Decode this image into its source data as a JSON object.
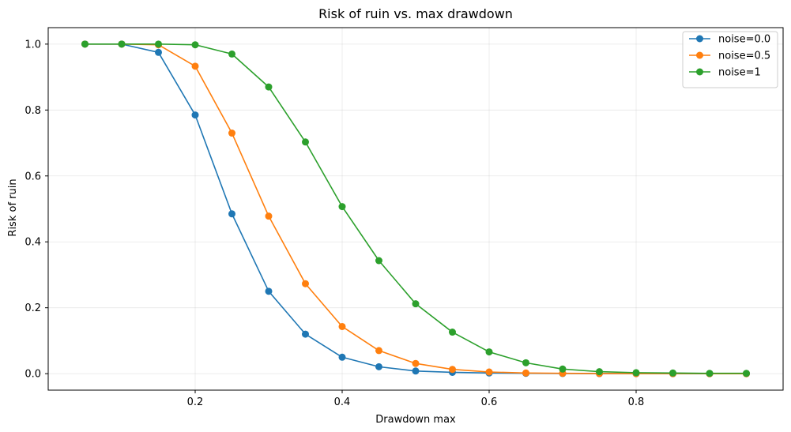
{
  "chart_data": {
    "type": "line",
    "title": "Risk of ruin vs. max drawdown",
    "xlabel": "Drawdown max",
    "ylabel": "Risk of ruin",
    "xlim": [
      0.0,
      1.0
    ],
    "ylim": [
      -0.05,
      1.05
    ],
    "grid": true,
    "legend_position": "top-right",
    "x": [
      0.05,
      0.1,
      0.15,
      0.2,
      0.25,
      0.3,
      0.35,
      0.4,
      0.45,
      0.5,
      0.55,
      0.6,
      0.65,
      0.7,
      0.75,
      0.8,
      0.85,
      0.9,
      0.95
    ],
    "xticks": [
      0.2,
      0.4,
      0.6,
      0.8
    ],
    "xtick_labels": [
      "0.2",
      "0.4",
      "0.6",
      "0.8"
    ],
    "yticks": [
      0.0,
      0.2,
      0.4,
      0.6,
      0.8,
      1.0
    ],
    "ytick_labels": [
      "0.0",
      "0.2",
      "0.4",
      "0.6",
      "0.8",
      "1.0"
    ],
    "series": [
      {
        "name": "noise=0.0",
        "color": "#1f77b4",
        "values": [
          1.0,
          1.0,
          0.975,
          0.785,
          0.485,
          0.25,
          0.12,
          0.05,
          0.021,
          0.008,
          0.004,
          0.002,
          0.001,
          0.0005,
          0.0002,
          0.0001,
          0.0,
          0.0,
          0.0
        ]
      },
      {
        "name": "noise=0.5",
        "color": "#ff7f0e",
        "values": [
          1.0,
          1.0,
          0.998,
          0.933,
          0.73,
          0.478,
          0.273,
          0.143,
          0.07,
          0.031,
          0.013,
          0.005,
          0.002,
          0.001,
          0.0005,
          0.0002,
          0.0001,
          0.0,
          0.0
        ]
      },
      {
        "name": "noise=1",
        "color": "#2ca02c",
        "values": [
          1.0,
          1.0,
          1.0,
          0.998,
          0.97,
          0.87,
          0.703,
          0.507,
          0.343,
          0.212,
          0.126,
          0.066,
          0.033,
          0.014,
          0.006,
          0.003,
          0.002,
          0.001,
          0.001
        ]
      }
    ]
  }
}
